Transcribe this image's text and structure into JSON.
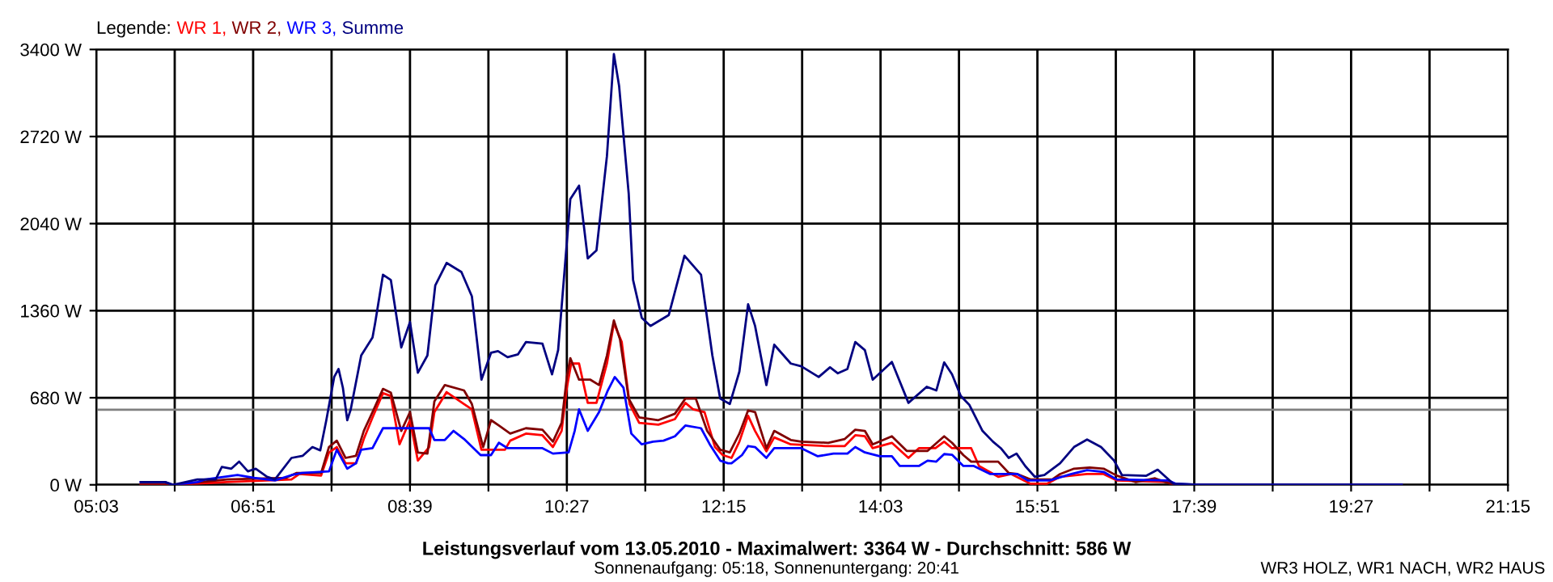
{
  "chart_data": {
    "type": "line",
    "title": "Leistungsverlauf vom 13.05.2010 - Maximalwert: 3364 W - Durchschnitt: 586 W",
    "subtitle": "Sonnenaufgang: 05:18, Sonnenuntergang: 20:41",
    "annotations": [
      "WR3 HOLZ, WR1 NACH, WR2 HAUS"
    ],
    "legend_title": "Legende:",
    "legend": "top left",
    "grid": true,
    "marker": "none",
    "line_style": "solid",
    "xlim": [
      5.05,
      21.25
    ],
    "xticks": [
      {
        "value": 5.05,
        "label": "05:03"
      },
      {
        "value": 5.95,
        "label": null
      },
      {
        "value": 6.85,
        "label": "06:51"
      },
      {
        "value": 7.75,
        "label": null
      },
      {
        "value": 8.65,
        "label": "08:39"
      },
      {
        "value": 9.55,
        "label": null
      },
      {
        "value": 10.45,
        "label": "10:27"
      },
      {
        "value": 11.35,
        "label": null
      },
      {
        "value": 12.25,
        "label": "12:15"
      },
      {
        "value": 13.15,
        "label": null
      },
      {
        "value": 14.05,
        "label": "14:03"
      },
      {
        "value": 14.95,
        "label": null
      },
      {
        "value": 15.85,
        "label": "15:51"
      },
      {
        "value": 16.75,
        "label": null
      },
      {
        "value": 17.65,
        "label": "17:39"
      },
      {
        "value": 18.55,
        "label": null
      },
      {
        "value": 19.45,
        "label": "19:27"
      },
      {
        "value": 20.35,
        "label": null
      },
      {
        "value": 21.25,
        "label": "21:15"
      }
    ],
    "ylim": [
      0,
      3400
    ],
    "yticks": [
      {
        "value": 0,
        "label": "0 W"
      },
      {
        "value": 680,
        "label": "680 W"
      },
      {
        "value": 1360,
        "label": "1360 W"
      },
      {
        "value": 2040,
        "label": "2040 W"
      },
      {
        "value": 2720,
        "label": "2720 W"
      },
      {
        "value": 3400,
        "label": "3400 W"
      }
    ],
    "ref_lines": [
      {
        "axis": "y",
        "value": 586,
        "color": "#808080"
      }
    ],
    "series": [
      {
        "name": "WR 1,",
        "color": "#ff0000",
        "x": [
          5.56,
          5.93,
          6.55,
          7.29,
          7.38,
          7.63,
          7.72,
          7.81,
          7.91,
          8.03,
          8.12,
          8.22,
          8.34,
          8.43,
          8.53,
          8.65,
          8.74,
          8.87,
          8.93,
          9.07,
          9.27,
          9.36,
          9.47,
          9.74,
          9.8,
          9.98,
          10.17,
          10.29,
          10.39,
          10.45,
          10.5,
          10.59,
          10.69,
          10.79,
          10.91,
          10.99,
          11.08,
          11.17,
          11.28,
          11.5,
          11.69,
          11.81,
          11.9,
          12.03,
          12.15,
          12.24,
          12.34,
          12.43,
          12.53,
          12.61,
          12.74,
          12.83,
          13.02,
          13.42,
          13.64,
          13.76,
          13.87,
          13.96,
          14.18,
          14.37,
          14.49,
          14.68,
          14.78,
          14.87,
          15.09,
          15.18,
          15.4,
          15.55,
          15.77,
          15.96,
          16.11,
          16.42,
          16.61,
          16.76,
          17.35,
          17.44
        ],
        "values": [
          0,
          0,
          21,
          42,
          84,
          72,
          252,
          295,
          168,
          168,
          358,
          526,
          716,
          694,
          316,
          505,
          189,
          295,
          568,
          724,
          631,
          589,
          274,
          274,
          345,
          400,
          387,
          295,
          421,
          758,
          947,
          947,
          640,
          640,
          947,
          1263,
          1115,
          631,
          484,
          470,
          513,
          640,
          589,
          568,
          295,
          232,
          210,
          337,
          539,
          421,
          261,
          370,
          316,
          303,
          303,
          387,
          379,
          286,
          328,
          210,
          286,
          286,
          337,
          286,
          286,
          147,
          63,
          84,
          8,
          8,
          63,
          84,
          84,
          34,
          21,
          0
        ]
      },
      {
        "name": "WR 2,",
        "color": "#800000",
        "x": [
          5.56,
          5.93,
          6.55,
          7.23,
          7.35,
          7.63,
          7.72,
          7.81,
          7.91,
          8.03,
          8.12,
          8.22,
          8.34,
          8.43,
          8.55,
          8.65,
          8.74,
          8.85,
          8.93,
          9.05,
          9.27,
          9.36,
          9.49,
          9.58,
          9.67,
          9.8,
          9.98,
          10.17,
          10.29,
          10.39,
          10.45,
          10.49,
          10.59,
          10.72,
          10.82,
          10.91,
          10.99,
          11.06,
          11.16,
          11.28,
          11.5,
          11.69,
          11.81,
          11.93,
          12.06,
          12.21,
          12.32,
          12.43,
          12.53,
          12.61,
          12.74,
          12.83,
          13.02,
          13.14,
          13.45,
          13.64,
          13.76,
          13.87,
          13.96,
          14.18,
          14.35,
          14.59,
          14.78,
          14.87,
          15.0,
          15.09,
          15.4,
          15.52,
          15.62,
          15.77,
          16.02,
          16.11,
          16.27,
          16.45,
          16.61,
          16.76,
          16.98,
          17.2,
          17.32,
          17.41,
          17.69,
          20.03
        ],
        "values": [
          0,
          0,
          42,
          55,
          93,
          93,
          295,
          345,
          210,
          227,
          421,
          568,
          749,
          720,
          421,
          568,
          252,
          244,
          652,
          779,
          737,
          631,
          295,
          505,
          463,
          400,
          442,
          430,
          337,
          484,
          842,
          989,
          821,
          821,
          779,
          1010,
          1284,
          1136,
          673,
          526,
          505,
          555,
          673,
          673,
          421,
          274,
          253,
          400,
          581,
          568,
          286,
          421,
          350,
          337,
          328,
          358,
          430,
          421,
          316,
          379,
          265,
          265,
          379,
          328,
          232,
          181,
          181,
          93,
          84,
          42,
          42,
          84,
          126,
          135,
          126,
          72,
          21,
          51,
          21,
          0,
          0,
          0
        ]
      },
      {
        "name": "WR 3,",
        "color": "#0000ff",
        "x": [
          5.56,
          5.84,
          5.93,
          6.21,
          6.3,
          6.67,
          6.86,
          7.1,
          7.29,
          7.41,
          7.72,
          7.81,
          7.93,
          8.03,
          8.09,
          8.22,
          8.34,
          8.87,
          8.93,
          9.05,
          9.15,
          9.27,
          9.46,
          9.58,
          9.67,
          9.77,
          10.17,
          10.29,
          10.47,
          10.54,
          10.59,
          10.69,
          10.82,
          10.92,
          11.0,
          11.1,
          11.19,
          11.31,
          11.44,
          11.56,
          11.69,
          11.81,
          11.99,
          12.09,
          12.21,
          12.3,
          12.34,
          12.46,
          12.53,
          12.61,
          12.74,
          12.83,
          13.14,
          13.33,
          13.51,
          13.67,
          13.76,
          13.87,
          14.04,
          14.18,
          14.27,
          14.49,
          14.59,
          14.69,
          14.78,
          14.87,
          15.0,
          15.12,
          15.31,
          15.62,
          15.74,
          15.99,
          16.24,
          16.42,
          16.61,
          16.76,
          17.35,
          17.44,
          17.69,
          20.03
        ],
        "values": [
          21,
          21,
          0,
          21,
          42,
          76,
          55,
          34,
          76,
          93,
          105,
          274,
          126,
          168,
          274,
          286,
          442,
          442,
          350,
          350,
          421,
          358,
          232,
          232,
          328,
          286,
          286,
          244,
          253,
          421,
          589,
          421,
          568,
          737,
          842,
          758,
          400,
          316,
          337,
          345,
          379,
          463,
          442,
          316,
          189,
          168,
          168,
          232,
          303,
          295,
          210,
          286,
          286,
          223,
          244,
          244,
          295,
          253,
          223,
          223,
          147,
          147,
          189,
          181,
          240,
          235,
          147,
          147,
          84,
          84,
          34,
          34,
          84,
          114,
          101,
          42,
          34,
          8,
          0,
          0
        ]
      },
      {
        "name": "Summe",
        "color": "#000080",
        "x": [
          5.56,
          5.84,
          5.93,
          6.21,
          6.42,
          6.49,
          6.6,
          6.69,
          6.79,
          6.88,
          7.01,
          7.1,
          7.29,
          7.42,
          7.53,
          7.62,
          7.69,
          7.78,
          7.83,
          7.88,
          7.93,
          7.97,
          8.09,
          8.22,
          8.25,
          8.34,
          8.43,
          8.55,
          8.65,
          8.74,
          8.85,
          8.94,
          9.07,
          9.24,
          9.36,
          9.47,
          9.58,
          9.66,
          9.77,
          9.89,
          9.98,
          10.17,
          10.28,
          10.35,
          10.43,
          10.49,
          10.59,
          10.69,
          10.79,
          10.91,
          10.99,
          11.05,
          11.16,
          11.21,
          11.31,
          11.41,
          11.62,
          11.8,
          11.99,
          12.12,
          12.21,
          12.32,
          12.43,
          12.53,
          12.61,
          12.74,
          12.83,
          13.02,
          13.14,
          13.34,
          13.47,
          13.56,
          13.67,
          13.76,
          13.87,
          13.96,
          14.18,
          14.37,
          14.58,
          14.69,
          14.78,
          14.87,
          14.97,
          15.07,
          15.22,
          15.34,
          15.43,
          15.52,
          15.61,
          15.71,
          15.82,
          15.93,
          16.11,
          16.27,
          16.42,
          16.58,
          16.73,
          16.82,
          17.1,
          17.23,
          17.32,
          17.41,
          17.69,
          20.03
        ],
        "values": [
          21,
          21,
          0,
          42,
          42,
          139,
          126,
          181,
          105,
          126,
          63,
          42,
          210,
          227,
          295,
          269,
          505,
          842,
          905,
          758,
          505,
          589,
          1010,
          1150,
          1262,
          1641,
          1600,
          1073,
          1271,
          875,
          1010,
          1557,
          1733,
          1662,
          1473,
          821,
          1031,
          1044,
          997,
          1019,
          1115,
          1103,
          863,
          1052,
          1726,
          2231,
          2336,
          1768,
          1831,
          2567,
          3364,
          3114,
          2273,
          1600,
          1304,
          1241,
          1326,
          1789,
          1641,
          1010,
          673,
          631,
          884,
          1410,
          1241,
          779,
          1094,
          947,
          926,
          842,
          918,
          871,
          905,
          1115,
          1052,
          821,
          960,
          640,
          766,
          737,
          956,
          863,
          694,
          623,
          421,
          337,
          286,
          210,
          244,
          147,
          63,
          76,
          168,
          295,
          354,
          295,
          189,
          76,
          71,
          118,
          63,
          8,
          0,
          0
        ]
      }
    ]
  }
}
